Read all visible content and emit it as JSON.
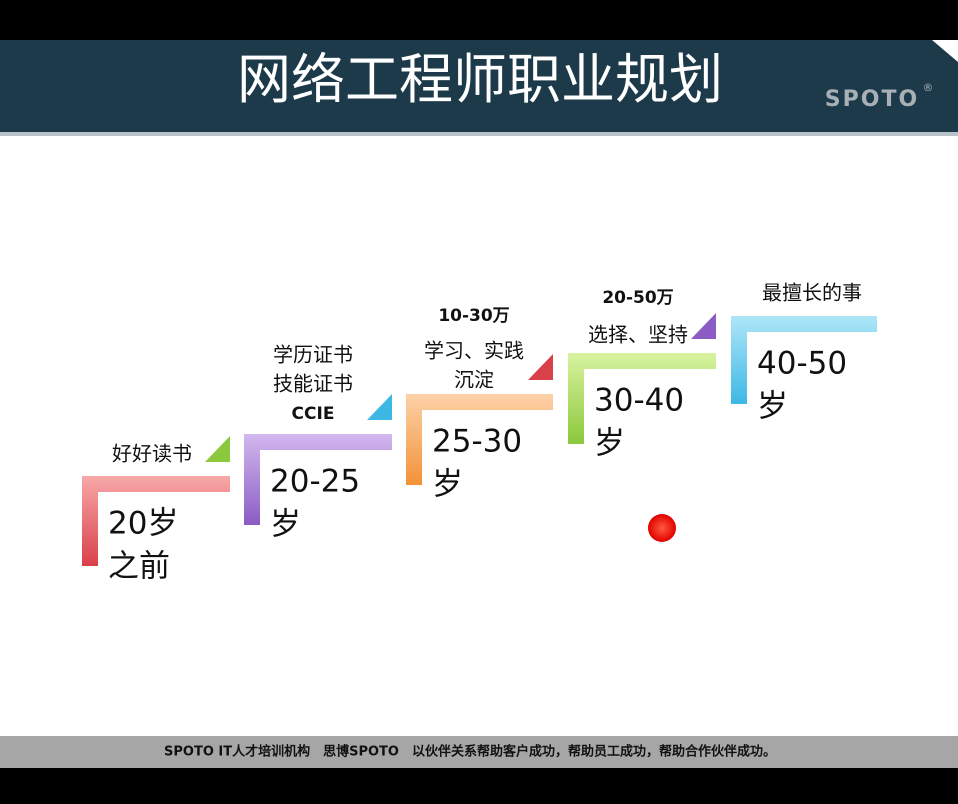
{
  "header": {
    "title": "网络工程师职业规划",
    "logo": "SPOTO",
    "logo_mark": "®"
  },
  "steps": [
    {
      "captions": [
        "好好读书"
      ],
      "age": [
        "20岁",
        "之前"
      ]
    },
    {
      "captions": [
        "学历证书",
        "技能证书",
        "CCIE"
      ],
      "age": [
        "20-25",
        "岁"
      ]
    },
    {
      "captions": [
        "10-30万",
        "学习、实践",
        "沉淀"
      ],
      "age": [
        "25-30",
        "岁"
      ]
    },
    {
      "captions": [
        "20-50万",
        "选择、坚持"
      ],
      "age": [
        "30-40",
        "岁"
      ]
    },
    {
      "captions": [
        "最擅长的事"
      ],
      "age": [
        "40-50",
        "岁"
      ]
    }
  ],
  "footer": "SPOTO IT人才培训机构　思博SPOTO　以伙伴关系帮助客户成功，帮助员工成功，帮助合作伙伴成功。"
}
